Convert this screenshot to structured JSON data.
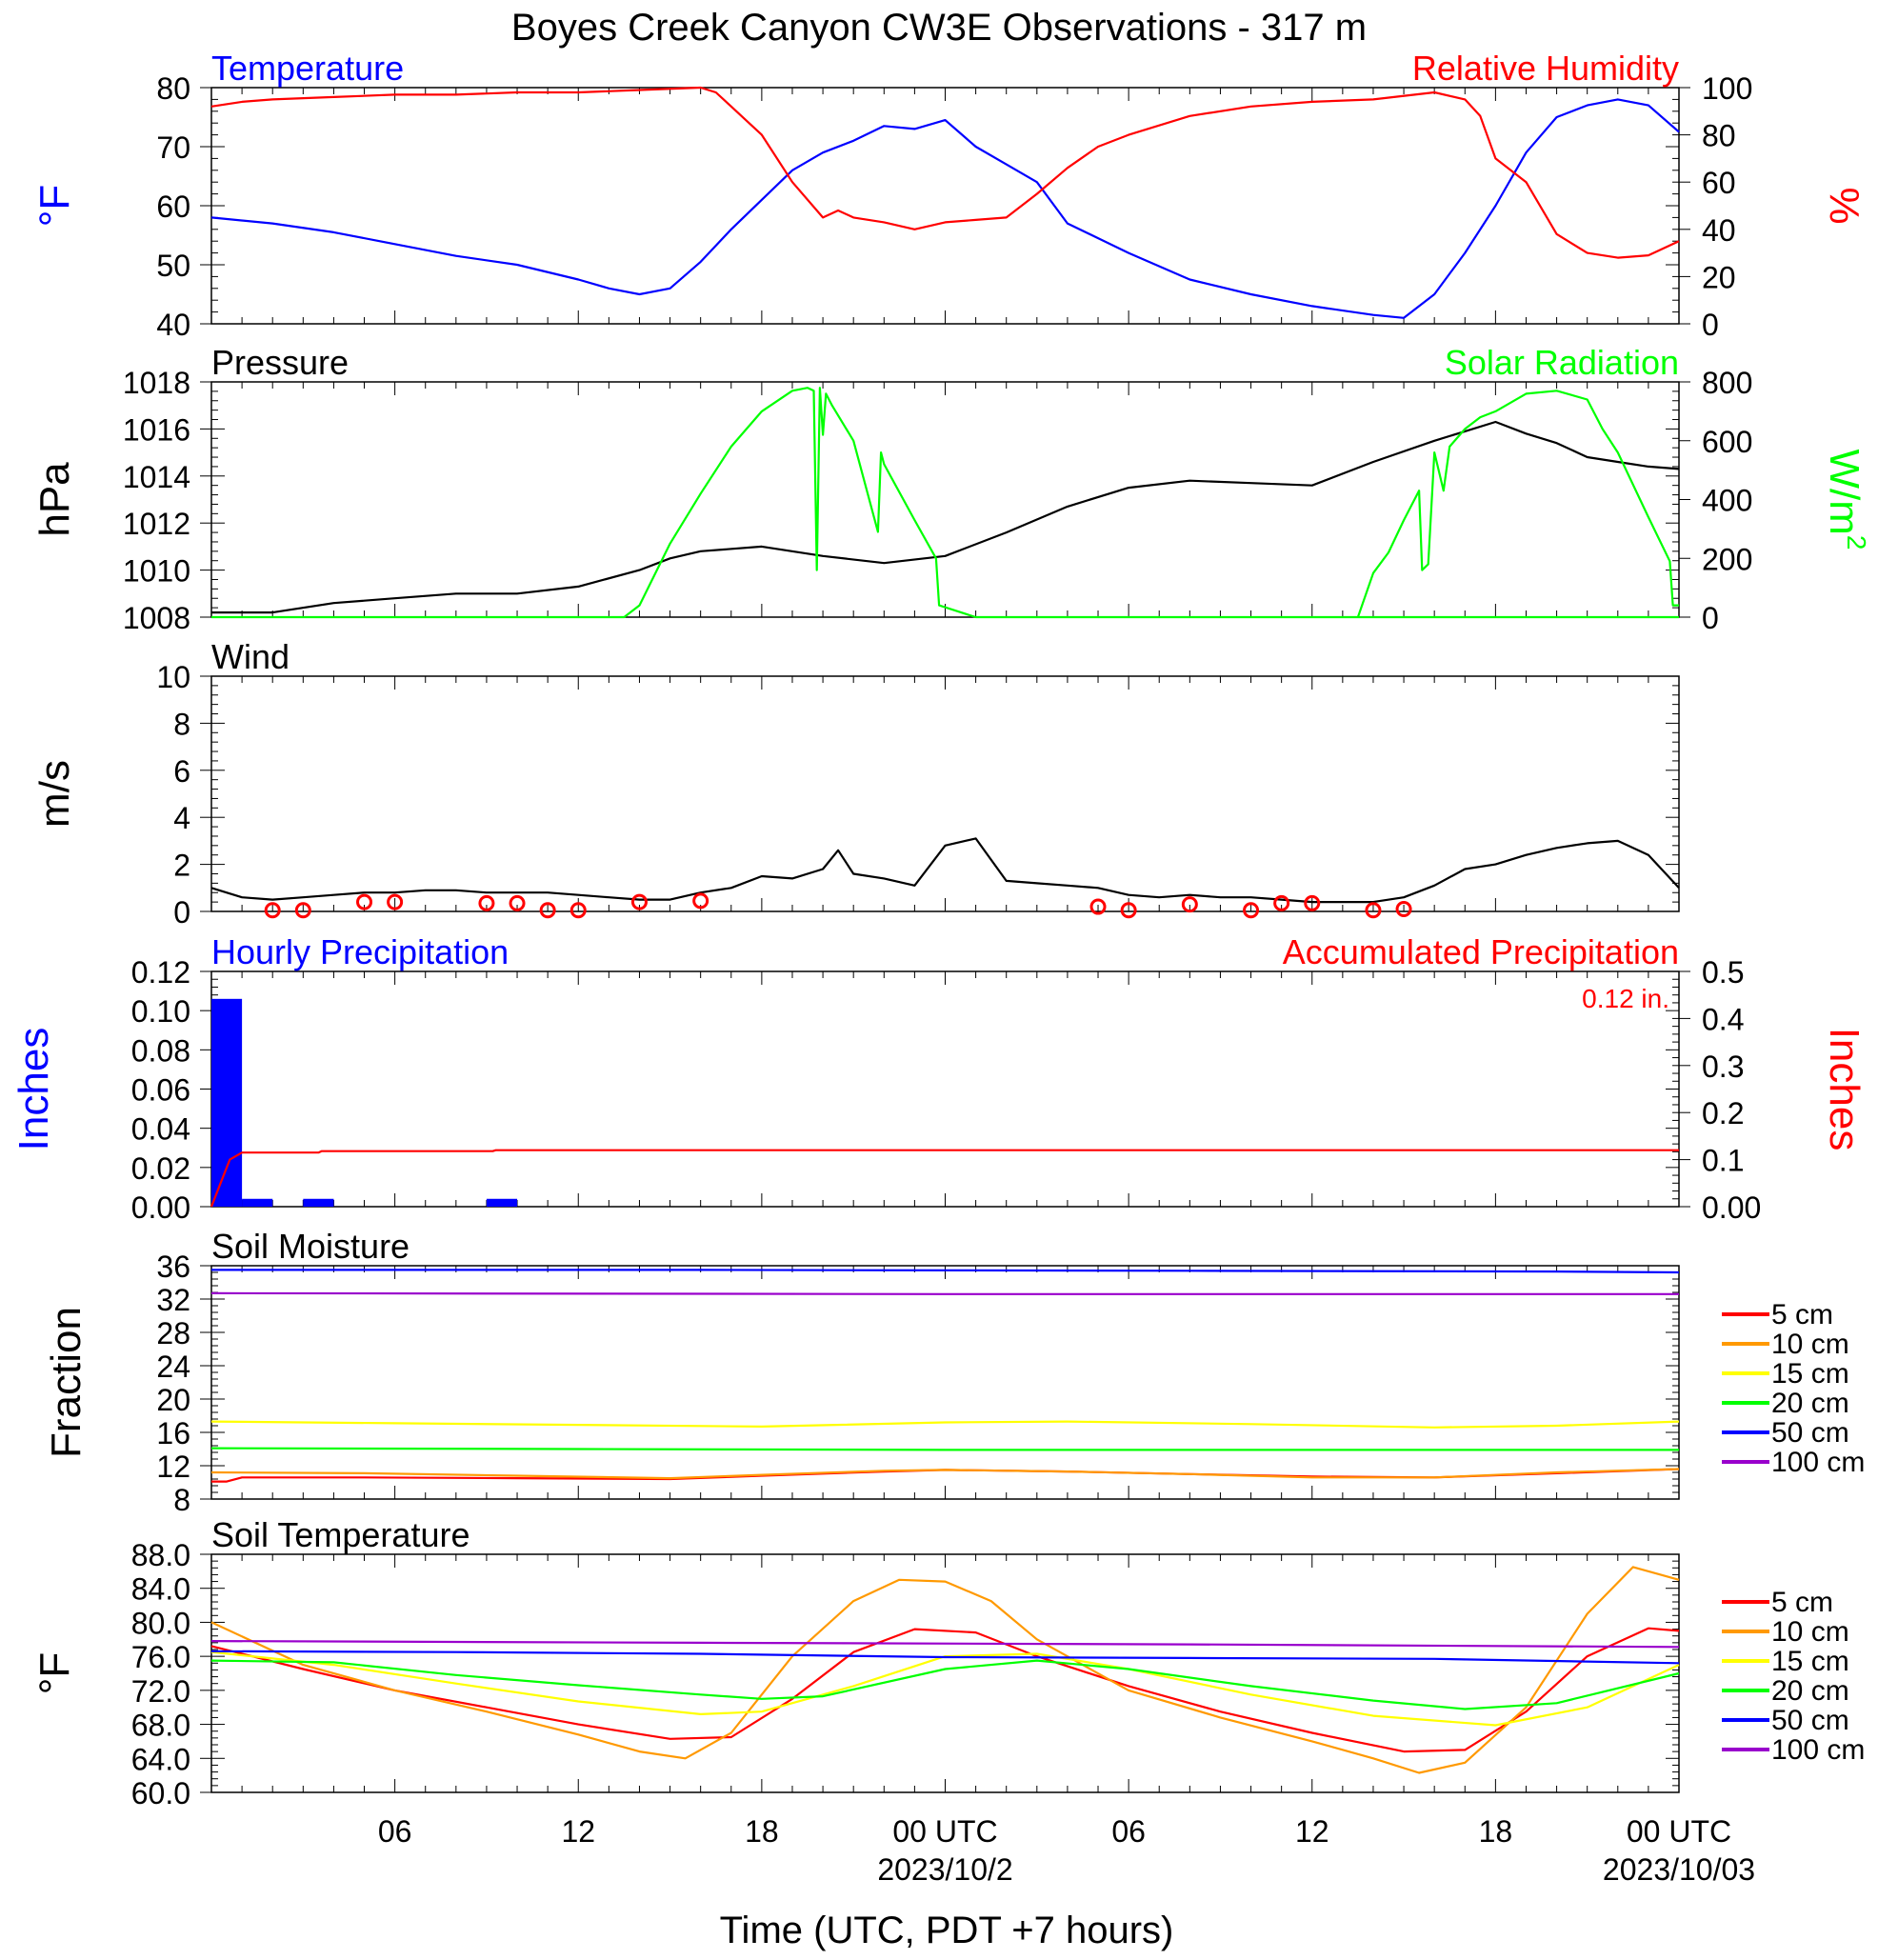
{
  "figure": {
    "title": "Boyes Creek Canyon CW3E Observations - 317 m",
    "xlabel": "Time (UTC, PDT +7 hours)",
    "x_ticks": [
      {
        "label": "06",
        "hour": 6
      },
      {
        "label": "12",
        "hour": 12
      },
      {
        "label": "18",
        "hour": 18
      },
      {
        "label": "00 UTC",
        "hour": 24,
        "sublabel": "2023/10/2"
      },
      {
        "label": "06",
        "hour": 30
      },
      {
        "label": "12",
        "hour": 36
      },
      {
        "label": "18",
        "hour": 42
      },
      {
        "label": "00 UTC",
        "hour": 48,
        "sublabel": "2023/10/03"
      }
    ]
  },
  "colors": {
    "blue": "#0000ff",
    "red": "#ff0000",
    "green": "#00ff00",
    "black": "#000000",
    "orange": "#ff9900",
    "yellow": "#ffff00",
    "purple": "#9900cc"
  },
  "chart_data": [
    {
      "id": "temp_rh",
      "type": "line",
      "title_left": "Temperature",
      "title_right": "Relative Humidity",
      "ylabel_left": "°F",
      "ylabel_right": "%",
      "ylim_left": [
        40,
        80
      ],
      "ylim_right": [
        0,
        100
      ],
      "yticks_left": [
        "80",
        "70",
        "60",
        "50",
        "40"
      ],
      "yticks_right": [
        "100",
        "80",
        "60",
        "40",
        "20",
        "0"
      ],
      "x_unit": "hours since 2023-10-01 00 UTC",
      "series": [
        {
          "name": "Temperature",
          "axis": "left",
          "color": "#0000ff",
          "x": [
            0,
            2,
            4,
            6,
            8,
            10,
            12,
            13,
            14,
            15,
            16,
            17,
            18,
            19,
            20,
            21,
            22,
            23,
            24,
            25,
            26,
            27,
            28,
            30,
            32,
            34,
            36,
            38,
            39,
            40,
            41,
            42,
            43,
            44,
            45,
            46,
            47,
            48
          ],
          "y": [
            58.0,
            57.0,
            55.5,
            53.5,
            51.5,
            50.0,
            47.5,
            46.0,
            45.0,
            46.0,
            50.5,
            56.0,
            61.0,
            66.0,
            69.0,
            71.0,
            73.5,
            73.0,
            74.5,
            70.0,
            67.0,
            64.0,
            57.0,
            52.0,
            47.5,
            45.0,
            43.0,
            41.5,
            41.0,
            45.0,
            52.0,
            60.0,
            69.0,
            75.0,
            77.0,
            78.0,
            77.0,
            72.5
          ]
        },
        {
          "name": "Relative Humidity",
          "axis": "right",
          "color": "#ff0000",
          "x": [
            0,
            1,
            2,
            4,
            6,
            8,
            10,
            12,
            14,
            16,
            16.5,
            17,
            18,
            19,
            20,
            20.5,
            21,
            22,
            23,
            24,
            25,
            26,
            27,
            28,
            29,
            30,
            32,
            34,
            36,
            38,
            40,
            41,
            41.5,
            42,
            43,
            44,
            45,
            46,
            47,
            48
          ],
          "y": [
            92,
            94,
            95,
            96,
            97,
            97,
            98,
            98,
            99,
            100,
            98,
            92,
            80,
            60,
            45,
            48,
            45,
            43,
            40,
            43,
            44,
            45,
            55,
            66,
            75,
            80,
            88,
            92,
            94,
            95,
            98,
            95,
            88,
            70,
            60,
            38,
            30,
            28,
            29,
            35
          ]
        }
      ]
    },
    {
      "id": "pres_solar",
      "type": "line",
      "title_left": "Pressure",
      "title_right": "Solar Radiation",
      "ylabel_left": "hPa",
      "ylabel_right": "W/m",
      "ylabel_right_sup": "2",
      "ylim_left": [
        1008,
        1018
      ],
      "ylim_right": [
        0,
        800
      ],
      "yticks_left": [
        "1018",
        "1016",
        "1014",
        "1012",
        "1010",
        "1008"
      ],
      "yticks_right": [
        "800",
        "600",
        "400",
        "200",
        "0"
      ],
      "series": [
        {
          "name": "Pressure",
          "axis": "left",
          "color": "#000000",
          "x": [
            0,
            2,
            4,
            6,
            8,
            10,
            12,
            14,
            15,
            16,
            18,
            20,
            22,
            24,
            26,
            28,
            30,
            32,
            34,
            36,
            38,
            40,
            41,
            42,
            43,
            44,
            45,
            46,
            47,
            48
          ],
          "y": [
            1008.2,
            1008.2,
            1008.6,
            1008.8,
            1009.0,
            1009.0,
            1009.3,
            1010.0,
            1010.5,
            1010.8,
            1011.0,
            1010.6,
            1010.3,
            1010.6,
            1011.6,
            1012.7,
            1013.5,
            1013.8,
            1013.7,
            1013.6,
            1014.6,
            1015.5,
            1015.9,
            1016.3,
            1015.8,
            1015.4,
            1014.8,
            1014.6,
            1014.4,
            1014.3
          ]
        },
        {
          "name": "Solar Radiation",
          "axis": "right",
          "color": "#00ff00",
          "x": [
            0,
            13.5,
            14,
            15,
            16,
            17,
            18,
            19,
            19.5,
            19.7,
            19.8,
            19.9,
            20.0,
            20.1,
            20.3,
            21,
            21.8,
            21.9,
            22.0,
            23,
            23.7,
            23.8,
            25,
            48
          ],
          "y": [
            0,
            0,
            40,
            250,
            420,
            580,
            700,
            770,
            780,
            770,
            160,
            780,
            620,
            760,
            720,
            600,
            290,
            560,
            520,
            330,
            200,
            40,
            0,
            0
          ]
        },
        {
          "name": "Solar Radiation",
          "axis": "right",
          "color": "#00ff00",
          "x": [
            37.5,
            38,
            38.5,
            39,
            39.5,
            39.6,
            39.8,
            40.0,
            40.3,
            40.5,
            41,
            41.5,
            42,
            43,
            44,
            45,
            45.5,
            46,
            47,
            47.7,
            47.8,
            48
          ],
          "y": [
            0,
            150,
            220,
            330,
            430,
            160,
            180,
            560,
            430,
            580,
            640,
            680,
            700,
            760,
            770,
            740,
            640,
            560,
            340,
            190,
            40,
            40
          ]
        }
      ]
    },
    {
      "id": "wind",
      "type": "line",
      "title_left": "Wind",
      "ylabel_left": "m/s",
      "ylim_left": [
        0,
        10
      ],
      "yticks_left": [
        "10",
        "8",
        "6",
        "4",
        "2",
        "0"
      ],
      "series": [
        {
          "name": "Wind",
          "axis": "left",
          "color": "#000000",
          "x": [
            0,
            1,
            2,
            3,
            4,
            5,
            6,
            7,
            8,
            9,
            10,
            11,
            12,
            13,
            14,
            15,
            16,
            17,
            18,
            19,
            20,
            20.5,
            21,
            22,
            23,
            24,
            25,
            26,
            27,
            28,
            29,
            30,
            31,
            32,
            33,
            34,
            35,
            36,
            37,
            38,
            39,
            40,
            41,
            42,
            43,
            44,
            45,
            46,
            47,
            48
          ],
          "y": [
            1.0,
            0.6,
            0.5,
            0.6,
            0.7,
            0.8,
            0.8,
            0.9,
            0.9,
            0.8,
            0.8,
            0.8,
            0.7,
            0.6,
            0.5,
            0.5,
            0.8,
            1.0,
            1.5,
            1.4,
            1.8,
            2.6,
            1.6,
            1.4,
            1.1,
            2.8,
            3.1,
            1.3,
            1.2,
            1.1,
            1.0,
            0.7,
            0.6,
            0.7,
            0.6,
            0.6,
            0.5,
            0.4,
            0.4,
            0.4,
            0.6,
            1.1,
            1.8,
            2.0,
            2.4,
            2.7,
            2.9,
            3.0,
            2.4,
            1.0
          ]
        }
      ],
      "calm_markers_hours": [
        2,
        3,
        5,
        6,
        9,
        10,
        11,
        12,
        14,
        16,
        29,
        30,
        32,
        34,
        35,
        36,
        38,
        39
      ],
      "calm_markers_speed": [
        0.05,
        0.05,
        0.4,
        0.4,
        0.35,
        0.35,
        0.05,
        0.05,
        0.4,
        0.45,
        0.2,
        0.05,
        0.3,
        0.05,
        0.35,
        0.35,
        0.05,
        0.1
      ]
    },
    {
      "id": "precip",
      "type": "bar",
      "title_left": "Hourly Precipitation",
      "title_right": "Accumulated Precipitation",
      "annotation": "0.12 in.",
      "ylabel_left": "Inches",
      "ylabel_right": "Inches",
      "ylim_left": [
        0,
        0.12
      ],
      "ylim_right": [
        0,
        0.5
      ],
      "yticks_left": [
        "0.12",
        "0.10",
        "0.08",
        "0.06",
        "0.04",
        "0.02",
        "0.00"
      ],
      "yticks_right": [
        "0.5",
        "0.4",
        "0.3",
        "0.2",
        "0.1",
        "0.00"
      ],
      "bars": {
        "name": "Hourly Precipitation",
        "color": "#0000ff",
        "hour_start": [
          0,
          1,
          3,
          9
        ],
        "values": [
          0.106,
          0.004,
          0.004,
          0.004
        ]
      },
      "series": [
        {
          "name": "Accumulated Precipitation",
          "axis": "right",
          "color": "#ff0000",
          "x": [
            0,
            0.3,
            0.6,
            1.0,
            3.5,
            3.6,
            9.2,
            9.3,
            48
          ],
          "y": [
            0,
            0.05,
            0.1,
            0.115,
            0.115,
            0.118,
            0.118,
            0.12,
            0.12
          ]
        }
      ]
    },
    {
      "id": "soil_moisture",
      "type": "line",
      "title_left": "Soil Moisture",
      "ylabel_left": "Fraction",
      "ylim_left": [
        8,
        36
      ],
      "yticks_left": [
        "36",
        "32",
        "28",
        "24",
        "20",
        "16",
        "12",
        "8"
      ],
      "legend": [
        "5 cm",
        "10 cm",
        "15 cm",
        "20 cm",
        "50 cm",
        "100 cm"
      ],
      "series": [
        {
          "name": "5 cm",
          "axis": "left",
          "color": "#ff0000",
          "x": [
            0,
            0.5,
            1,
            5,
            10,
            15,
            18,
            22,
            24,
            28,
            32,
            36,
            40,
            44,
            48
          ],
          "y": [
            10.1,
            10.1,
            10.6,
            10.6,
            10.5,
            10.4,
            10.8,
            11.3,
            11.5,
            11.3,
            11.0,
            10.7,
            10.6,
            11.1,
            11.6
          ]
        },
        {
          "name": "10 cm",
          "axis": "left",
          "color": "#ff9900",
          "x": [
            0,
            5,
            10,
            15,
            18,
            22,
            24,
            28,
            32,
            36,
            40,
            44,
            48
          ],
          "y": [
            11.2,
            11.1,
            10.8,
            10.5,
            10.9,
            11.4,
            11.5,
            11.3,
            11.0,
            10.6,
            10.6,
            11.2,
            11.6
          ]
        },
        {
          "name": "15 cm",
          "axis": "left",
          "color": "#ffff00",
          "x": [
            0,
            6,
            12,
            18,
            24,
            28,
            34,
            40,
            44,
            48
          ],
          "y": [
            17.3,
            17.1,
            16.9,
            16.7,
            17.2,
            17.3,
            17.0,
            16.6,
            16.8,
            17.3
          ]
        },
        {
          "name": "20 cm",
          "axis": "left",
          "color": "#00ff00",
          "x": [
            0,
            12,
            24,
            36,
            48
          ],
          "y": [
            14.1,
            14.0,
            13.9,
            13.9,
            13.9
          ]
        },
        {
          "name": "50 cm",
          "axis": "left",
          "color": "#0000ff",
          "x": [
            0,
            16,
            32,
            44,
            48
          ],
          "y": [
            35.5,
            35.5,
            35.4,
            35.3,
            35.2
          ]
        },
        {
          "name": "100 cm",
          "axis": "left",
          "color": "#9900cc",
          "x": [
            0,
            24,
            48
          ],
          "y": [
            32.7,
            32.6,
            32.6
          ]
        }
      ]
    },
    {
      "id": "soil_temperature",
      "type": "line",
      "title_left": "Soil Temperature",
      "ylabel_left": "°F",
      "ylim_left": [
        60,
        88
      ],
      "yticks_left": [
        "88.0",
        "84.0",
        "80.0",
        "76.0",
        "72.0",
        "68.0",
        "64.0",
        "60.0"
      ],
      "legend": [
        "5 cm",
        "10 cm",
        "15 cm",
        "20 cm",
        "50 cm",
        "100 cm"
      ],
      "series": [
        {
          "name": "5 cm",
          "axis": "left",
          "color": "#ff0000",
          "x": [
            0,
            3,
            6,
            9,
            12,
            15,
            17,
            19,
            21,
            23,
            25,
            27,
            30,
            33,
            36,
            39,
            41,
            43,
            45,
            47,
            48
          ],
          "y": [
            77.2,
            74.5,
            72.0,
            70.0,
            68.0,
            66.3,
            66.5,
            71.0,
            76.5,
            79.2,
            78.8,
            76.0,
            72.5,
            69.5,
            67.0,
            64.8,
            65.0,
            69.5,
            76.0,
            79.3,
            79.0
          ]
        },
        {
          "name": "10 cm",
          "axis": "left",
          "color": "#ff9900",
          "x": [
            0,
            3,
            6,
            9,
            12,
            14,
            15.5,
            17,
            19,
            21,
            22.5,
            24,
            25.5,
            27,
            30,
            33,
            36,
            38,
            39.5,
            41,
            43,
            45,
            46.5,
            48
          ],
          "y": [
            80.0,
            75.0,
            72.0,
            69.5,
            66.8,
            64.8,
            64.0,
            67.0,
            76.0,
            82.5,
            85.0,
            84.8,
            82.5,
            78.0,
            72.0,
            68.8,
            66.0,
            64.0,
            62.3,
            63.5,
            70.0,
            81.0,
            86.5,
            85.0
          ]
        },
        {
          "name": "15 cm",
          "axis": "left",
          "color": "#ffff00",
          "x": [
            0,
            4,
            8,
            12,
            16,
            18,
            21,
            24,
            27,
            30,
            34,
            38,
            42,
            45,
            48
          ],
          "y": [
            76.5,
            75.0,
            72.8,
            70.7,
            69.2,
            69.5,
            72.5,
            76.0,
            76.3,
            74.5,
            71.5,
            69.0,
            67.9,
            70.0,
            75.0
          ]
        },
        {
          "name": "20 cm",
          "axis": "left",
          "color": "#00ff00",
          "x": [
            0,
            4,
            8,
            12,
            16,
            18,
            20,
            24,
            27,
            30,
            34,
            38,
            41,
            44,
            48
          ],
          "y": [
            75.5,
            75.3,
            73.8,
            72.6,
            71.5,
            71.0,
            71.3,
            74.5,
            75.5,
            74.5,
            72.5,
            70.8,
            69.8,
            70.5,
            74.0
          ]
        },
        {
          "name": "50 cm",
          "axis": "left",
          "color": "#0000ff",
          "x": [
            0,
            8,
            16,
            24,
            32,
            40,
            48
          ],
          "y": [
            76.6,
            76.5,
            76.3,
            75.9,
            75.8,
            75.7,
            75.2
          ]
        },
        {
          "name": "100 cm",
          "axis": "left",
          "color": "#9900cc",
          "x": [
            0,
            16,
            32,
            48
          ],
          "y": [
            77.8,
            77.6,
            77.4,
            77.1
          ]
        }
      ]
    }
  ]
}
